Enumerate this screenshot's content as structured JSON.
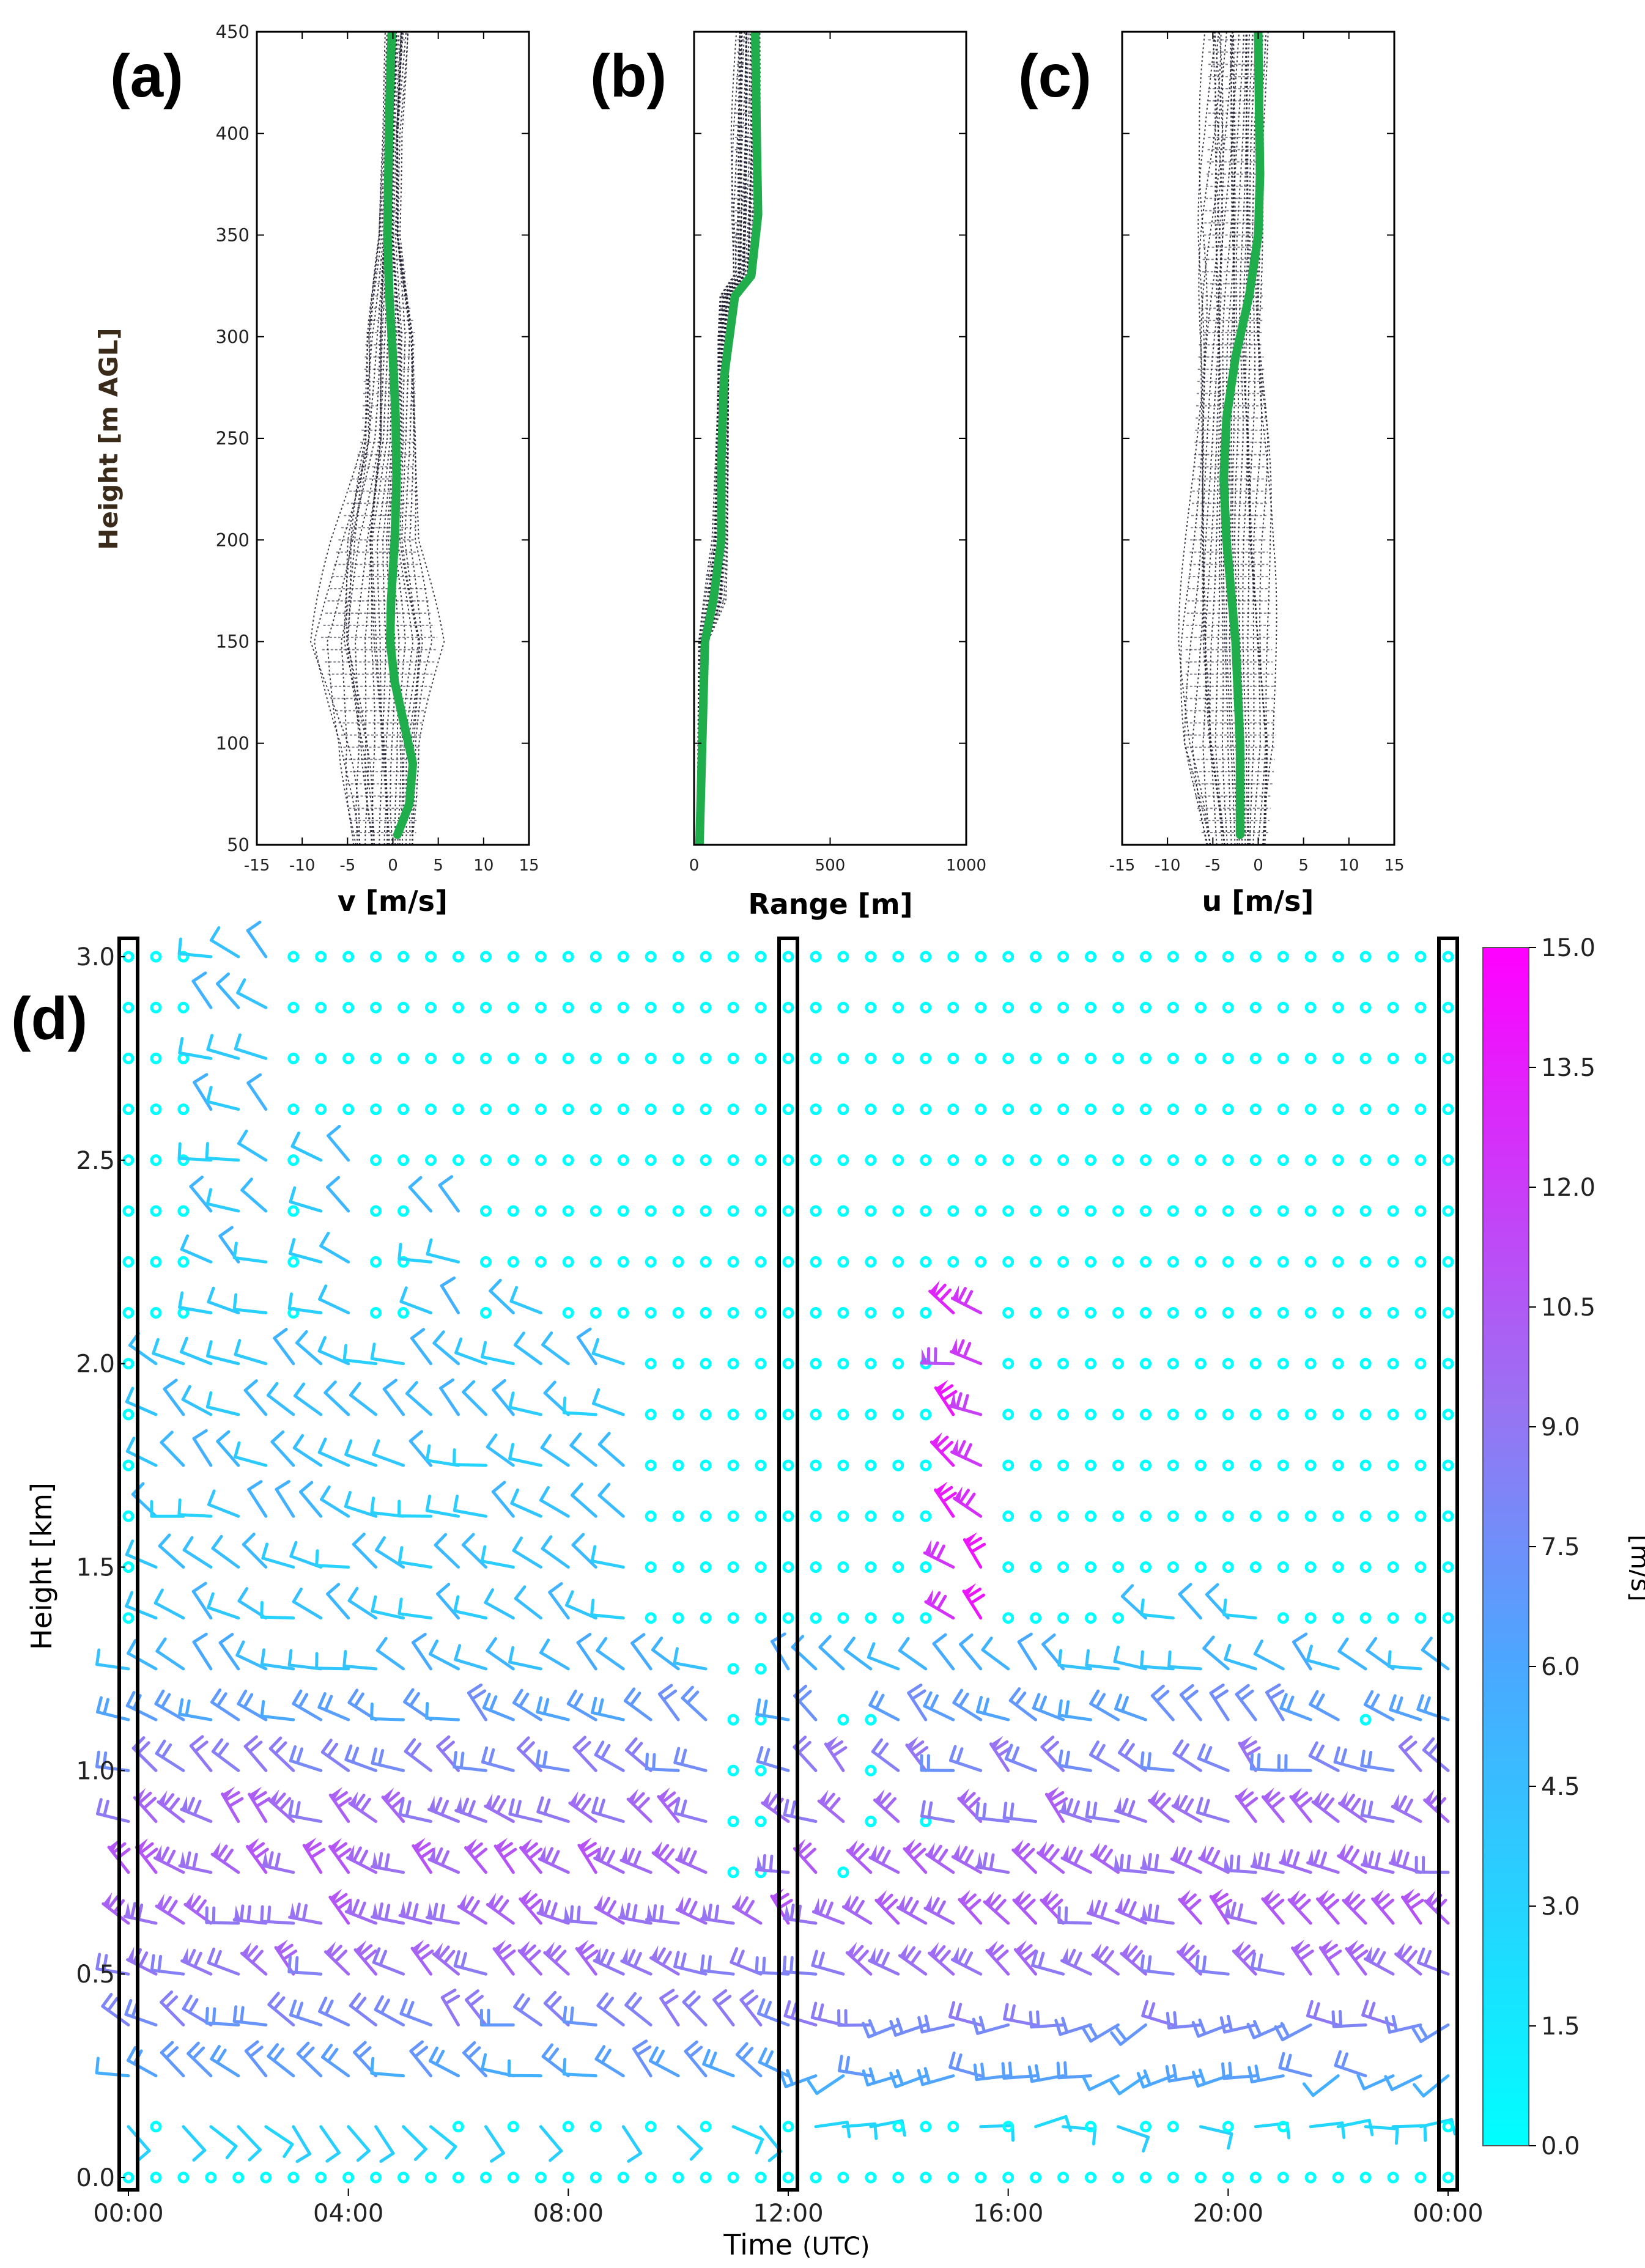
{
  "figure": {
    "panel_labels": [
      "(a)",
      "(b)",
      "(c)",
      "(d)"
    ],
    "colors": {
      "mean_profile": "#1fae4b",
      "individual_profiles": "#1c1c2e",
      "colormap_low": "#00ffff",
      "colormap_high": "#ff00ff",
      "time_markers": "#000000"
    }
  },
  "chart_data": [
    {
      "panel": "(a)",
      "type": "line",
      "xlabel": "v [m/s]",
      "ylabel": "Height [m AGL]",
      "xlim": [
        -15,
        15
      ],
      "ylim": [
        50,
        450
      ],
      "x_ticks": [
        "-15",
        "-10",
        "-5",
        "0",
        "5",
        "10",
        "15"
      ],
      "y_ticks": [
        "50",
        "100",
        "150",
        "200",
        "250",
        "300",
        "350",
        "400",
        "450"
      ],
      "series": [
        {
          "role": "mean",
          "y": [
            55,
            70,
            90,
            110,
            130,
            150,
            170,
            200,
            230,
            260,
            290,
            320,
            350,
            380,
            410,
            440,
            450
          ],
          "x": [
            0.5,
            1.8,
            2.2,
            1.2,
            0.2,
            -0.3,
            -0.2,
            0.2,
            0.4,
            0.3,
            0.0,
            -0.4,
            -0.6,
            -0.5,
            -0.4,
            -0.2,
            -0.1
          ]
        }
      ],
      "spread": {
        "y": [
          50,
          100,
          150,
          200,
          250,
          300,
          350,
          400,
          450
        ],
        "x_min": [
          -4.5,
          -5.5,
          -8.0,
          -6.0,
          -3.5,
          -3.0,
          -1.5,
          -1.0,
          -0.8
        ],
        "x_max": [
          2.5,
          3.0,
          5.0,
          2.5,
          2.5,
          2.5,
          0.8,
          0.8,
          1.5
        ]
      }
    },
    {
      "panel": "(b)",
      "type": "line",
      "xlabel": "Range [m]",
      "xlim": [
        0,
        1000
      ],
      "ylim": [
        50,
        450
      ],
      "x_ticks": [
        "0",
        "500",
        "1000"
      ],
      "series": [
        {
          "role": "mean",
          "y": [
            50,
            100,
            150,
            170,
            200,
            240,
            280,
            320,
            330,
            360,
            400,
            450
          ],
          "x": [
            20,
            30,
            40,
            70,
            100,
            100,
            110,
            150,
            210,
            235,
            230,
            225
          ]
        }
      ],
      "spread": {
        "y": [
          50,
          150,
          170,
          200,
          300,
          320,
          330,
          400,
          450
        ],
        "x_min": [
          10,
          20,
          40,
          70,
          90,
          100,
          150,
          150,
          160
        ],
        "x_max": [
          30,
          50,
          110,
          120,
          130,
          140,
          210,
          240,
          240
        ]
      }
    },
    {
      "panel": "(c)",
      "type": "line",
      "xlabel": "u [m/s]",
      "xlim": [
        -15,
        15
      ],
      "ylim": [
        50,
        450
      ],
      "x_ticks": [
        "-15",
        "-10",
        "-5",
        "0",
        "5",
        "10",
        "15"
      ],
      "series": [
        {
          "role": "mean",
          "y": [
            55,
            100,
            150,
            200,
            230,
            260,
            290,
            320,
            350,
            380,
            410,
            450
          ],
          "x": [
            -2.0,
            -2.0,
            -2.5,
            -3.5,
            -3.8,
            -3.5,
            -2.5,
            -1.0,
            0.0,
            0.2,
            0.1,
            0.0
          ]
        }
      ],
      "spread": {
        "y": [
          50,
          100,
          150,
          200,
          250,
          300,
          350,
          400,
          450
        ],
        "x_min": [
          -6.0,
          -8.0,
          -8.0,
          -7.5,
          -7.0,
          -6.5,
          -6.0,
          -5.5,
          -5.5
        ],
        "x_max": [
          1.0,
          2.0,
          1.5,
          1.0,
          1.0,
          0.5,
          0.5,
          0.5,
          1.0
        ]
      }
    },
    {
      "panel": "(d)",
      "type": "wind-barbs",
      "xlabel": "Time",
      "xlabel_unit": "(UTC)",
      "ylabel": "Height [km]",
      "x_ticks": [
        "00:00",
        "04:00",
        "08:00",
        "12:00",
        "16:00",
        "20:00",
        "00:00"
      ],
      "y_ticks": [
        "0.0",
        "0.5",
        "1.0",
        "1.5",
        "2.0",
        "2.5",
        "3.0"
      ],
      "xlim_hours": [
        0,
        24
      ],
      "ylim_km": [
        0,
        3
      ],
      "time_step_minutes": 30,
      "heights_km": [
        0.0,
        0.125,
        0.25,
        0.375,
        0.5,
        0.625,
        0.75,
        0.875,
        1.0,
        1.125,
        1.25,
        1.375,
        1.5,
        1.625,
        1.75,
        1.875,
        2.0,
        2.125,
        2.25,
        2.375,
        2.5,
        2.625,
        2.75,
        2.875,
        3.0
      ],
      "highlighted_times": [
        "00:00",
        "12:00",
        "00:00"
      ],
      "colorbar": {
        "label": "[m/s]",
        "ticks": [
          "0.0",
          "1.5",
          "3.0",
          "4.5",
          "6.0",
          "7.5",
          "9.0",
          "10.5",
          "12.0",
          "13.5",
          "15.0"
        ],
        "range": [
          0,
          15
        ]
      }
    }
  ]
}
